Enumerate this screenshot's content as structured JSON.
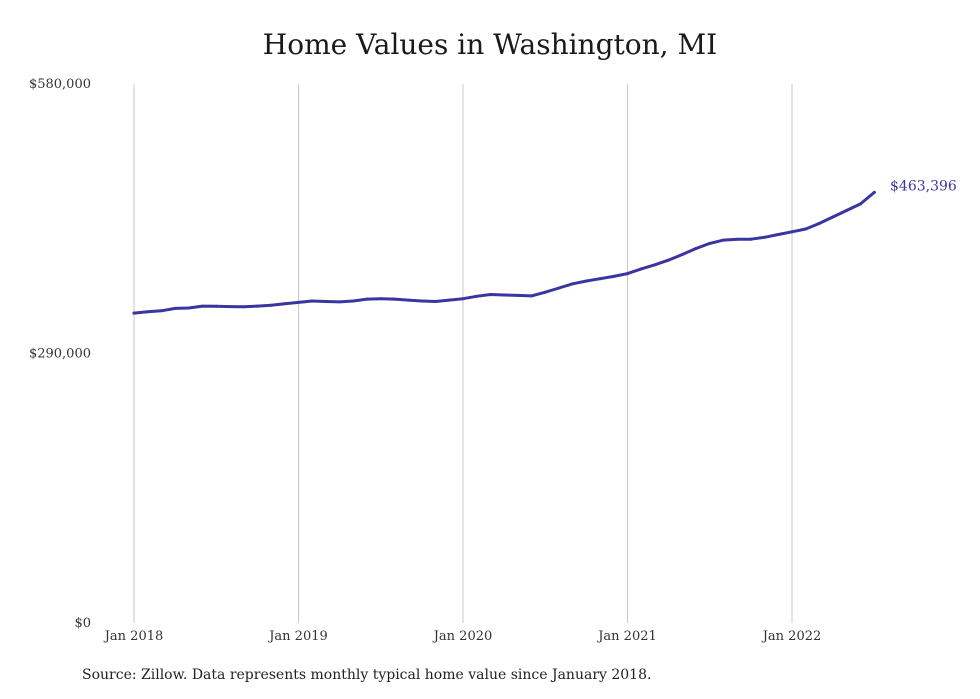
{
  "chart_data": {
    "type": "line",
    "title": "Home Values in Washington, MI",
    "xlabel": "",
    "ylabel": "",
    "ylim": [
      0,
      580000
    ],
    "y_ticks": [
      {
        "value": 0,
        "label": "$0"
      },
      {
        "value": 290000,
        "label": "$290,000"
      },
      {
        "value": 580000,
        "label": "$580,000"
      }
    ],
    "x_ticks": [
      {
        "date": "2018-01",
        "label": "Jan 2018"
      },
      {
        "date": "2019-01",
        "label": "Jan 2019"
      },
      {
        "date": "2020-01",
        "label": "Jan 2020"
      },
      {
        "date": "2021-01",
        "label": "Jan 2021"
      },
      {
        "date": "2022-01",
        "label": "Jan 2022"
      }
    ],
    "grid": "vertical",
    "color": "#3a35a0",
    "end_label": "$463,396",
    "series": [
      {
        "x": [
          "2018-01",
          "2018-02",
          "2018-03",
          "2018-04",
          "2018-05",
          "2018-06",
          "2018-07",
          "2018-08",
          "2018-09",
          "2018-10",
          "2018-11",
          "2018-12",
          "2019-01",
          "2019-02",
          "2019-03",
          "2019-04",
          "2019-05",
          "2019-06",
          "2019-07",
          "2019-08",
          "2019-09",
          "2019-10",
          "2019-11",
          "2019-12",
          "2020-01",
          "2020-02",
          "2020-03",
          "2020-04",
          "2020-05",
          "2020-06",
          "2020-07",
          "2020-08",
          "2020-09",
          "2020-10",
          "2020-11",
          "2020-12",
          "2021-01",
          "2021-02",
          "2021-03",
          "2021-04",
          "2021-05",
          "2021-06",
          "2021-07",
          "2021-08",
          "2021-09",
          "2021-10",
          "2021-11",
          "2021-12",
          "2022-01",
          "2022-02",
          "2022-03",
          "2022-04",
          "2022-05",
          "2022-06",
          "2022-07"
        ],
        "values": [
          333500,
          335000,
          336000,
          338500,
          339000,
          341000,
          340800,
          340500,
          340200,
          341000,
          342000,
          343500,
          345000,
          346500,
          346000,
          345500,
          346500,
          348500,
          349000,
          348500,
          347500,
          346500,
          346000,
          347500,
          349000,
          351500,
          353500,
          353000,
          352500,
          352000,
          356000,
          360500,
          365000,
          368000,
          370500,
          373000,
          376000,
          381000,
          385500,
          390500,
          396500,
          403000,
          408500,
          412000,
          413000,
          413000,
          415000,
          418000,
          421000,
          424000,
          430000,
          437000,
          444000,
          451000,
          463396
        ]
      }
    ]
  },
  "source": "Source: Zillow. Data represents monthly typical home value since January 2018."
}
